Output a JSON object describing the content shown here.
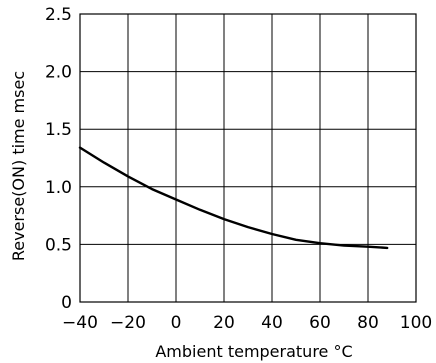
{
  "chart_data": {
    "type": "line",
    "title": "",
    "xlabel": "Ambient temperature °C",
    "ylabel": "Reverse(ON)  time  msec",
    "xlim": [
      -40,
      100
    ],
    "ylim": [
      0,
      2.5
    ],
    "x_ticks": [
      -40,
      -20,
      0,
      20,
      40,
      60,
      80,
      100
    ],
    "x_tick_labels": [
      "−40",
      "−20",
      "0",
      "20",
      "40",
      "60",
      "80",
      "100"
    ],
    "y_ticks": [
      0,
      0.5,
      1.0,
      1.5,
      2.0,
      2.5
    ],
    "y_tick_labels": [
      "0",
      "0.5",
      "1.0",
      "1.5",
      "2.0",
      "2.5"
    ],
    "grid": true,
    "series": [
      {
        "x": [
          -40,
          -30,
          -20,
          -10,
          0,
          10,
          20,
          30,
          40,
          50,
          60,
          70,
          80,
          88
        ],
        "y": [
          1.34,
          1.21,
          1.09,
          0.98,
          0.89,
          0.8,
          0.72,
          0.65,
          0.59,
          0.54,
          0.51,
          0.49,
          0.48,
          0.47
        ]
      }
    ]
  }
}
